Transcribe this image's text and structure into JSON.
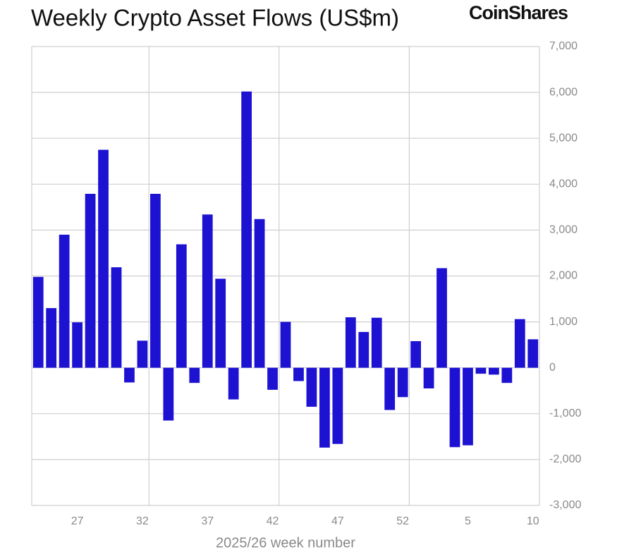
{
  "chart_data": {
    "type": "bar",
    "title": "Weekly Crypto Asset Flows (US$m)",
    "brand": "CoinShares",
    "x_label": "2025/26 week number",
    "categories": [
      null,
      null,
      null,
      "27",
      null,
      null,
      null,
      null,
      "32",
      null,
      null,
      null,
      null,
      "37",
      null,
      null,
      null,
      null,
      "42",
      null,
      null,
      null,
      null,
      "47",
      null,
      null,
      null,
      null,
      "52",
      null,
      null,
      null,
      null,
      "5",
      null,
      null,
      null,
      null,
      "10"
    ],
    "values": [
      1980,
      1300,
      2900,
      990,
      3790,
      4750,
      2190,
      -320,
      590,
      3790,
      -1150,
      2690,
      -330,
      3340,
      1940,
      -690,
      6020,
      3240,
      -480,
      1000,
      -290,
      -850,
      -1740,
      -1660,
      1100,
      780,
      1090,
      -920,
      -640,
      580,
      -450,
      2170,
      -1730,
      -1690,
      -130,
      -150,
      -330,
      1060,
      620
    ],
    "color": "#1d12d2",
    "ylim": [
      -3000,
      7000
    ],
    "yticks": [
      {
        "value": -3000,
        "label": "-3,000"
      },
      {
        "value": -2000,
        "label": "-2,000"
      },
      {
        "value": -1000,
        "label": "-1,000"
      },
      0,
      {
        "value": 1000,
        "label": "1,000"
      },
      {
        "value": 2000,
        "label": "2,000"
      },
      {
        "value": 3000,
        "label": "3,000"
      },
      {
        "value": 4000,
        "label": "4,000"
      },
      {
        "value": 5000,
        "label": "5,000"
      },
      {
        "value": 6000,
        "label": "6,000"
      },
      {
        "value": 7000,
        "label": "7,000"
      }
    ],
    "grid": true
  }
}
